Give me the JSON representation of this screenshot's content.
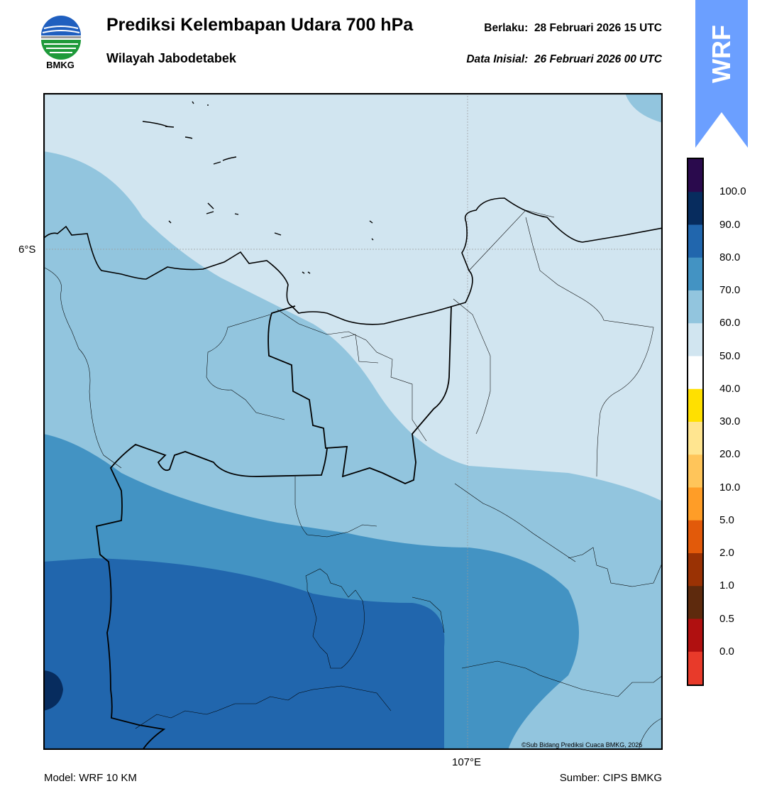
{
  "header": {
    "title": "Prediksi Kelembapan Udara 700 hPa",
    "subtitle": "Wilayah Jabodetabek",
    "valid_label": "Berlaku:",
    "valid_time": "28 Februari 2026 15 UTC",
    "init_label": "Data Inisial:",
    "init_time": "26 Februari 2026 00 UTC"
  },
  "logo": {
    "text": "BMKG",
    "icon": "bmkg-logo-icon"
  },
  "wrf_tag": {
    "text": "WRF",
    "color": "#6b9fff"
  },
  "map": {
    "lat_label": "6°S",
    "lon_label": "107°E",
    "credit": "©Sub Bidang Prediksi Cuaca BMKG, 2026"
  },
  "colorbar": {
    "labels": [
      "100.0",
      "90.0",
      "80.0",
      "70.0",
      "60.0",
      "50.0",
      "40.0",
      "30.0",
      "20.0",
      "10.0",
      "5.0",
      "2.0",
      "1.0",
      "0.5",
      "0.0"
    ],
    "colors": [
      "#2a0a4d",
      "#072c5e",
      "#2166ad",
      "#4393c3",
      "#92c5de",
      "#d1e5f0",
      "#ffffff",
      "#ffe000",
      "#ffe590",
      "#ffc55a",
      "#ff9d27",
      "#e25a0a",
      "#9a3204",
      "#5e2a0d",
      "#b01010",
      "#e83a2a"
    ]
  },
  "footer": {
    "model": "Model: WRF 10 KM",
    "source": "Sumber: CIPS BMKG"
  }
}
